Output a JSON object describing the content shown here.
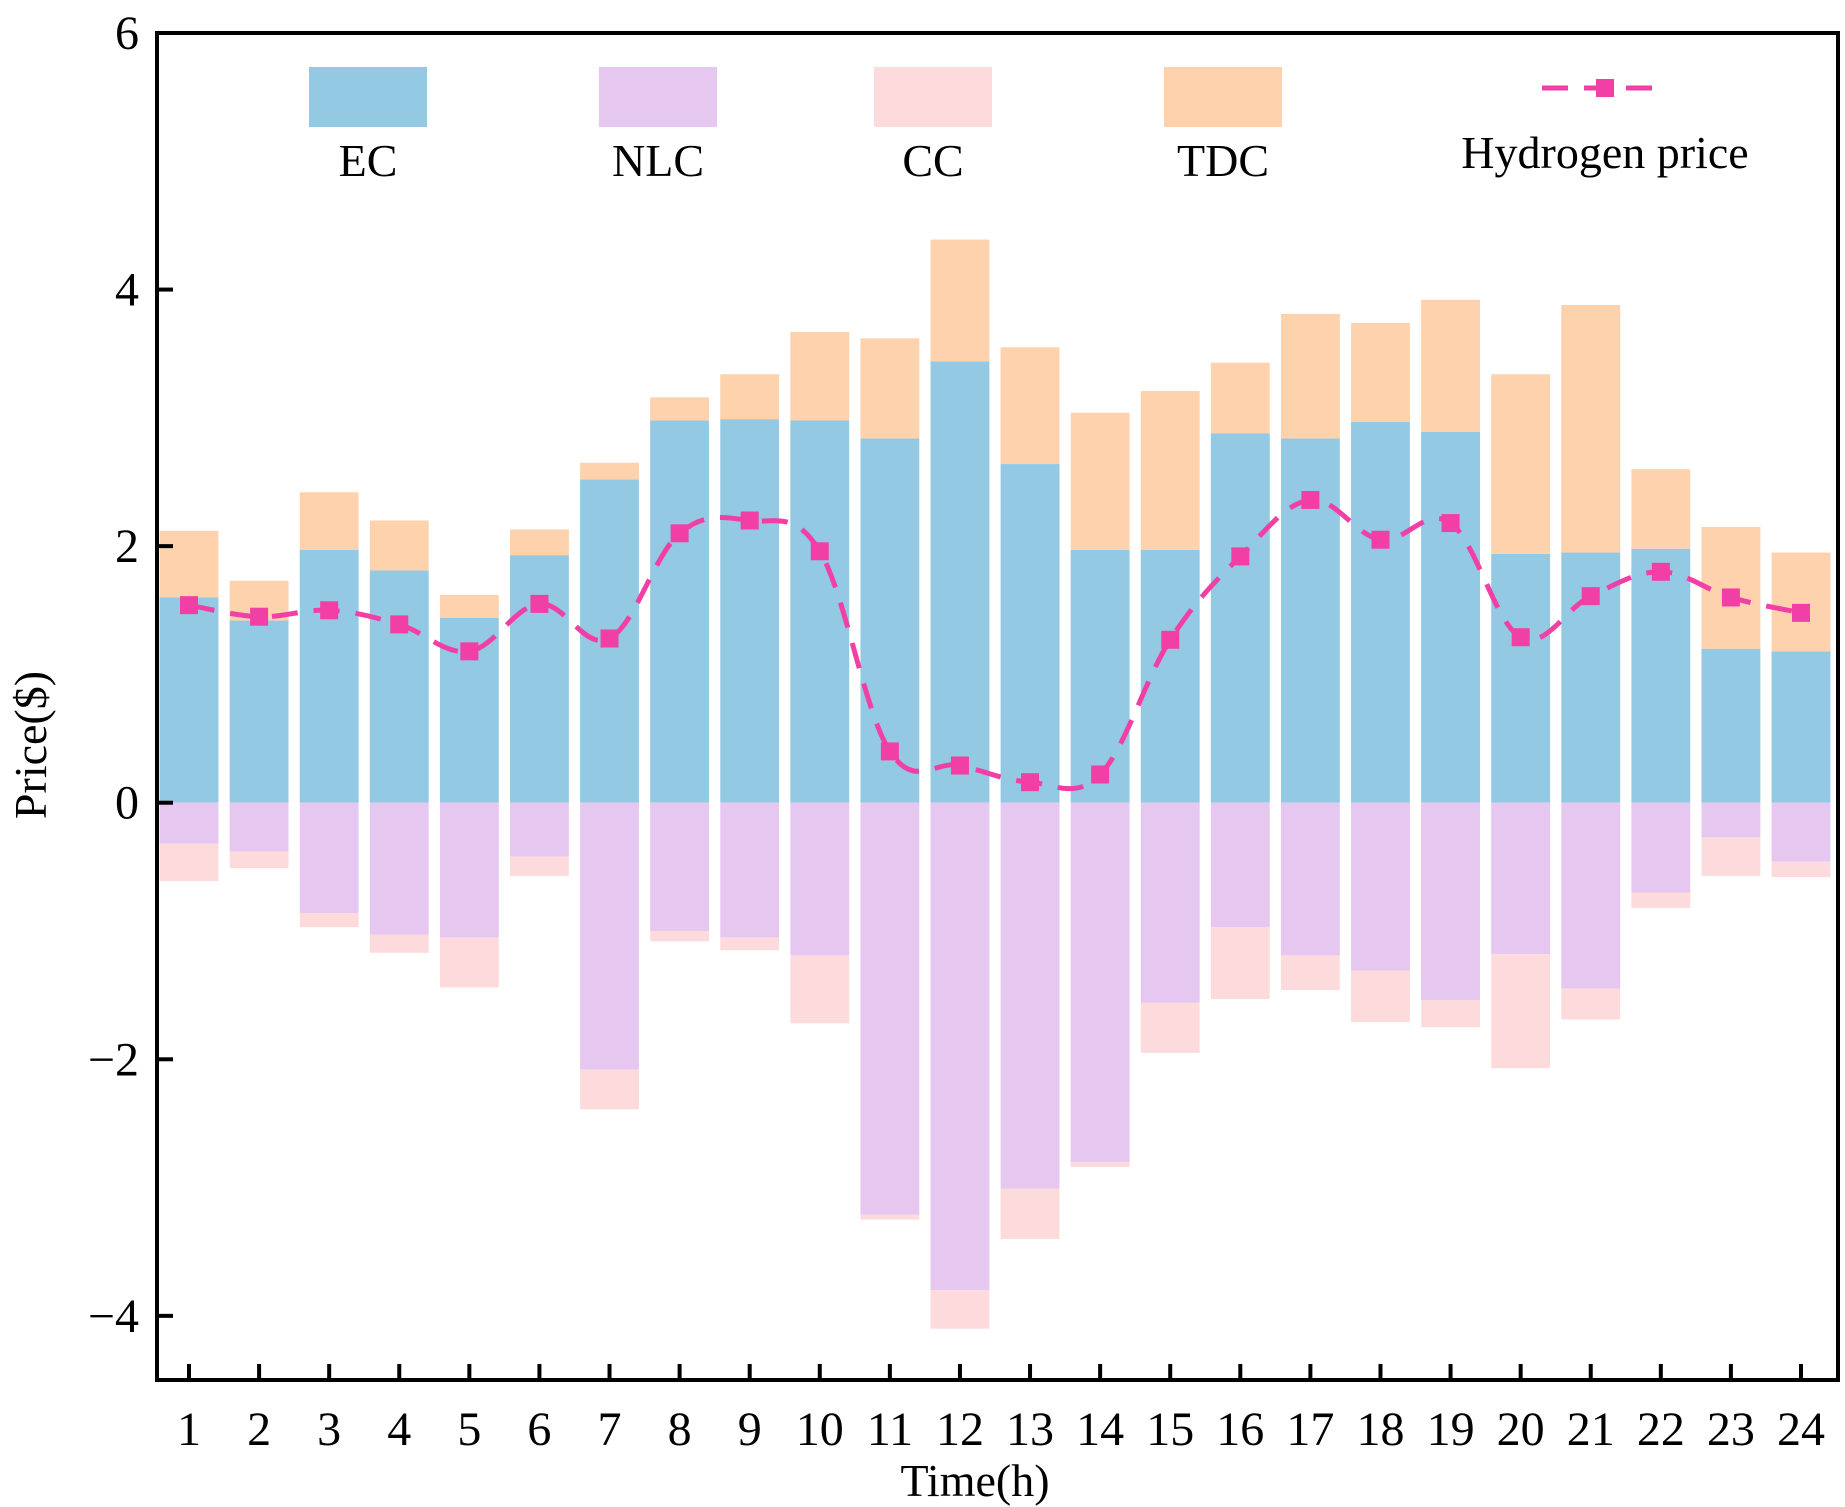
{
  "chart_data": {
    "type": "bar",
    "stacked": true,
    "xlabel": "Time(h)",
    "ylabel": "Price($)",
    "ylim": [
      -4.5,
      6
    ],
    "yticks": [
      6,
      4,
      2,
      0,
      -2,
      -4
    ],
    "ytick_labels": [
      "6",
      "4",
      "2",
      "0",
      "−2",
      "−4"
    ],
    "categories": [
      "1",
      "2",
      "3",
      "4",
      "5",
      "6",
      "7",
      "8",
      "9",
      "10",
      "11",
      "12",
      "13",
      "14",
      "15",
      "16",
      "17",
      "18",
      "19",
      "20",
      "21",
      "22",
      "23",
      "24"
    ],
    "legend_position": "top",
    "series": [
      {
        "name": "EC",
        "color": "#93c9e2",
        "values": [
          1.6,
          1.42,
          1.97,
          1.81,
          1.44,
          1.93,
          2.52,
          2.98,
          2.99,
          2.98,
          2.84,
          3.44,
          2.64,
          1.97,
          1.97,
          2.88,
          2.84,
          2.97,
          2.89,
          1.94,
          1.95,
          1.98,
          1.2,
          1.18
        ]
      },
      {
        "name": "TDC",
        "color": "#fdd2ac",
        "values": [
          0.52,
          0.31,
          0.45,
          0.39,
          0.18,
          0.2,
          0.13,
          0.18,
          0.35,
          0.69,
          0.78,
          0.95,
          0.91,
          1.07,
          1.24,
          0.55,
          0.97,
          0.77,
          1.03,
          1.4,
          1.93,
          0.62,
          0.95,
          0.77
        ]
      },
      {
        "name": "NLC",
        "color": "#e6c7ef",
        "values": [
          -0.32,
          -0.38,
          -0.86,
          -1.03,
          -1.05,
          -0.42,
          -2.08,
          -1.0,
          -1.05,
          -1.19,
          -3.21,
          -3.8,
          -3.01,
          -2.8,
          -1.56,
          -0.97,
          -1.19,
          -1.31,
          -1.54,
          -1.18,
          -1.45,
          -0.7,
          -0.27,
          -0.46
        ]
      },
      {
        "name": "CC",
        "color": "#fddbdd",
        "values": [
          -0.29,
          -0.13,
          -0.11,
          -0.14,
          -0.39,
          -0.15,
          -0.31,
          -0.08,
          -0.1,
          -0.53,
          -0.04,
          -0.3,
          -0.39,
          -0.04,
          -0.39,
          -0.56,
          -0.27,
          -0.4,
          -0.21,
          -0.89,
          -0.24,
          -0.12,
          -0.3,
          -0.12
        ]
      },
      {
        "name": "Hydrogen price",
        "type": "line",
        "style": "dashed",
        "marker": "square",
        "color": "#f23fa6",
        "values": [
          1.54,
          1.45,
          1.5,
          1.39,
          1.18,
          1.55,
          1.28,
          2.1,
          2.2,
          1.96,
          0.4,
          0.29,
          0.16,
          0.22,
          1.27,
          1.92,
          2.36,
          2.05,
          2.18,
          1.29,
          1.61,
          1.8,
          1.6,
          1.48
        ]
      }
    ],
    "legend": [
      {
        "label": "EC",
        "color": "#93c9e2",
        "kind": "box"
      },
      {
        "label": "NLC",
        "color": "#e6c7ef",
        "kind": "box"
      },
      {
        "label": "CC",
        "color": "#fddbdd",
        "kind": "box"
      },
      {
        "label": "TDC",
        "color": "#fdd2ac",
        "kind": "box"
      },
      {
        "label": "Hydrogen price",
        "color": "#f23fa6",
        "kind": "line"
      }
    ]
  }
}
